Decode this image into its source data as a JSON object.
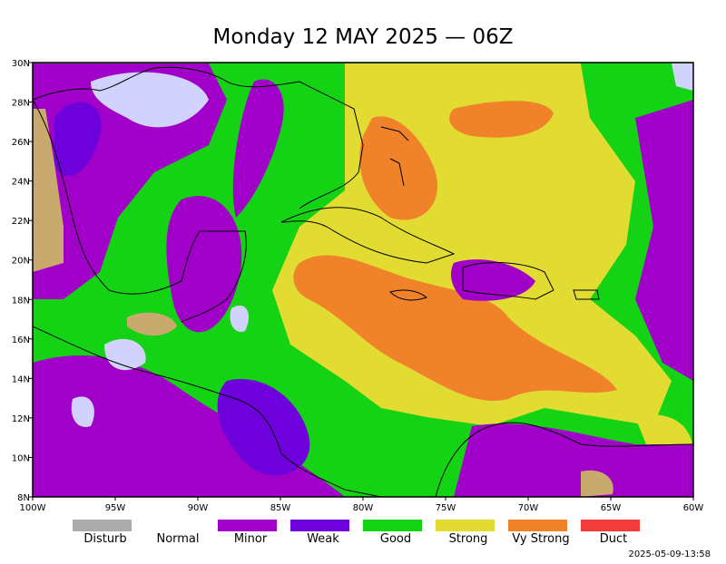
{
  "title": "Monday 12 MAY 2025 — 06Z",
  "map": {
    "lat_labels": [
      "30N",
      "28N",
      "26N",
      "24N",
      "22N",
      "20N",
      "18N",
      "16N",
      "14N",
      "12N",
      "10N",
      "8N"
    ],
    "lon_labels": [
      "100W",
      "95W",
      "90W",
      "85W",
      "80W",
      "75W",
      "70W",
      "65W",
      "60W"
    ]
  },
  "legend": [
    {
      "label": "Disturb",
      "color": "#acacac"
    },
    {
      "label": "Normal"
    },
    {
      "label": "Minor",
      "color": "#a000c8"
    },
    {
      "label": "Weak",
      "color": "#6e00dc"
    },
    {
      "label": "Good",
      "color": "#14d214"
    },
    {
      "label": "Strong",
      "color": "#e2dc32"
    },
    {
      "label": "Vy Strong",
      "color": "#f0822a"
    },
    {
      "label": "Duct",
      "color": "#f53c3c"
    }
  ],
  "timestamp": "2025-05-09-13:58"
}
